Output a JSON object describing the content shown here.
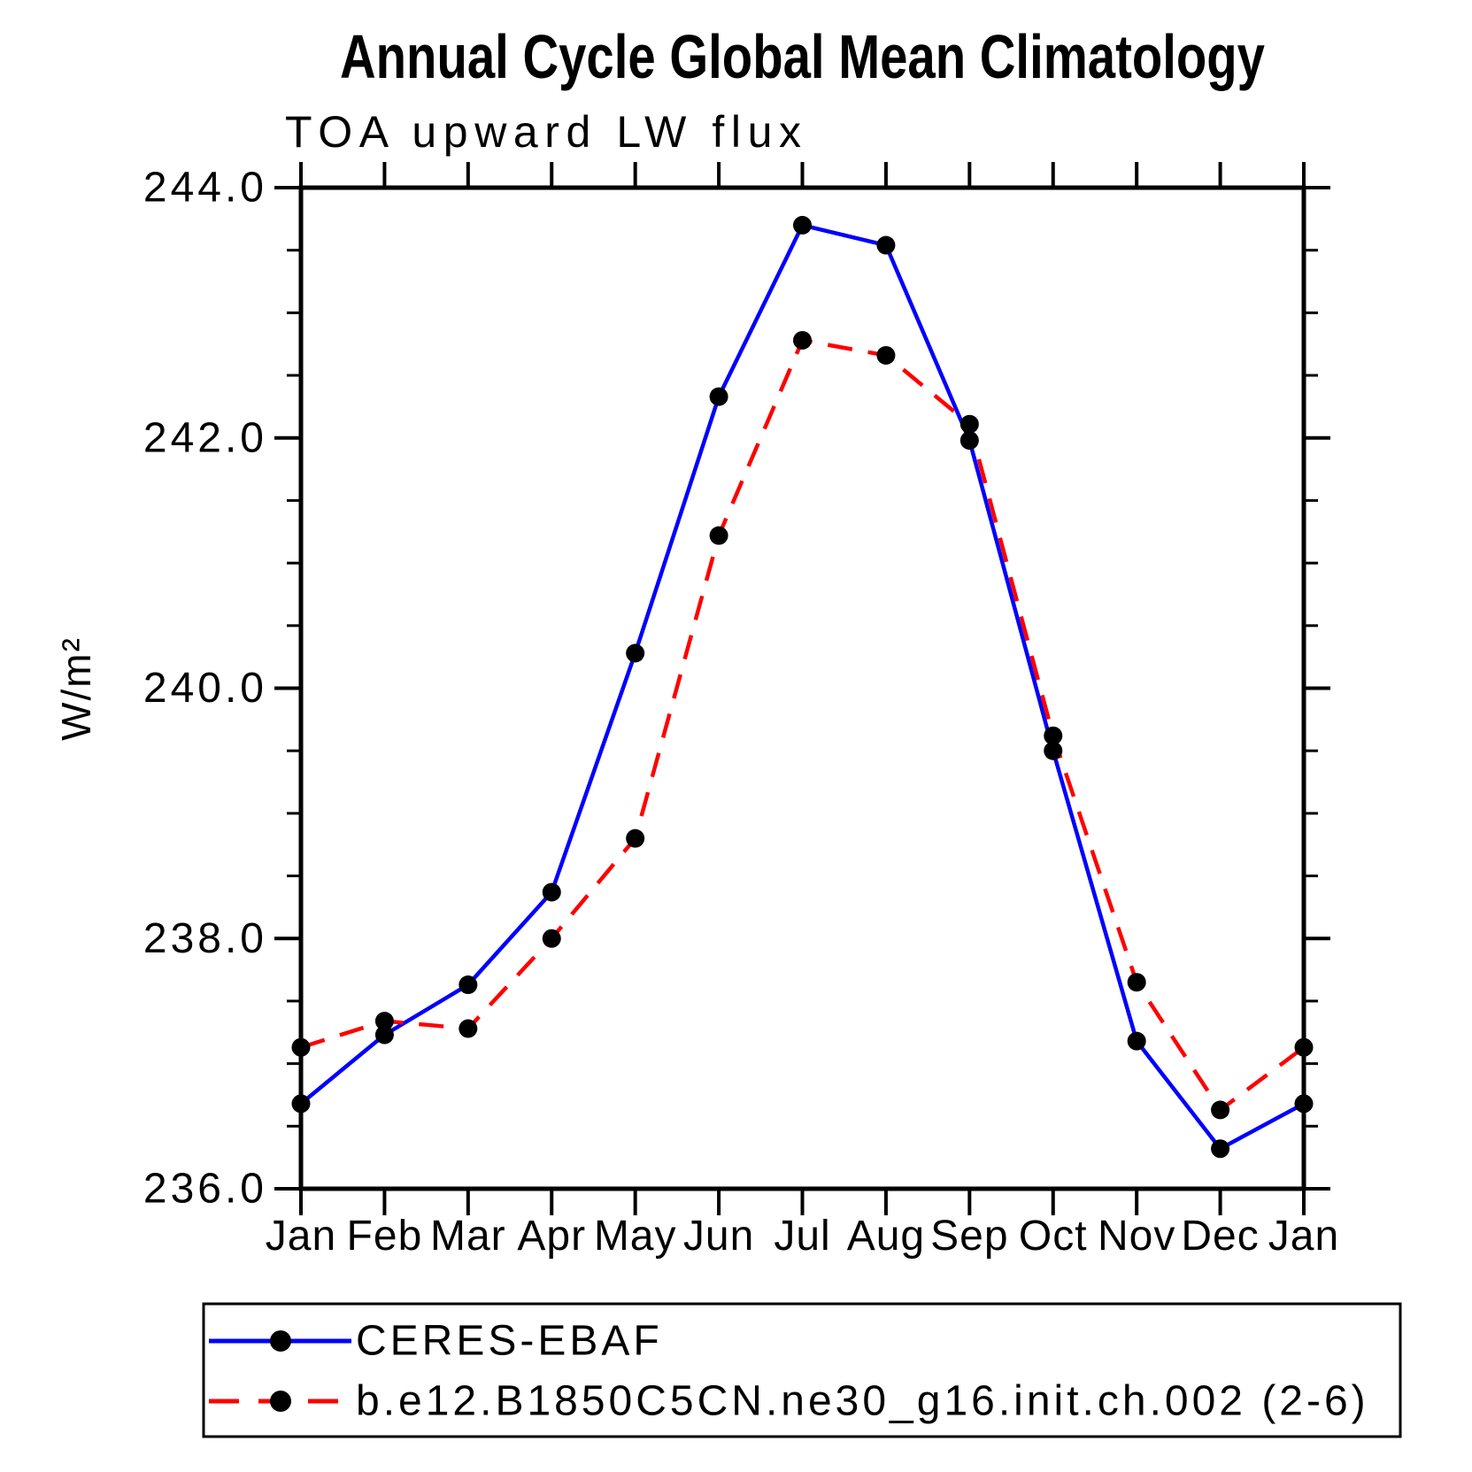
{
  "page_title": "Annual Cycle Global Mean Climatology",
  "chart_data": {
    "type": "line",
    "title": "Annual Cycle Global Mean Climatology",
    "subtitle": "TOA upward LW flux",
    "ylabel": "W/m²",
    "xlabel": "",
    "categories": [
      "Jan",
      "Feb",
      "Mar",
      "Apr",
      "May",
      "Jun",
      "Jul",
      "Aug",
      "Sep",
      "Oct",
      "Nov",
      "Dec",
      "Jan"
    ],
    "series": [
      {
        "name": "CERES-EBAF",
        "color": "#0000ff",
        "line_style": "solid",
        "marker": "circle",
        "marker_color": "#000000",
        "values": [
          236.68,
          237.23,
          237.63,
          238.37,
          240.28,
          242.33,
          243.7,
          243.54,
          241.98,
          239.5,
          237.18,
          236.32,
          236.68
        ]
      },
      {
        "name": "b.e12.B1850C5CN.ne30_g16.init.ch.002 (2-6)",
        "color": "#ff0000",
        "line_style": "dashed",
        "marker": "circle",
        "marker_color": "#000000",
        "values": [
          237.13,
          237.34,
          237.28,
          238.0,
          238.8,
          241.22,
          242.78,
          242.66,
          242.11,
          239.62,
          237.65,
          236.63,
          237.13
        ]
      }
    ],
    "ylim": [
      236.0,
      244.0
    ],
    "ytick_major_interval": 2.0,
    "ytick_minor_interval": 0.5,
    "ytick_labels": [
      "236.0",
      "238.0",
      "240.0",
      "242.0",
      "244.0"
    ],
    "grid": false,
    "legend_position": "bottom"
  }
}
